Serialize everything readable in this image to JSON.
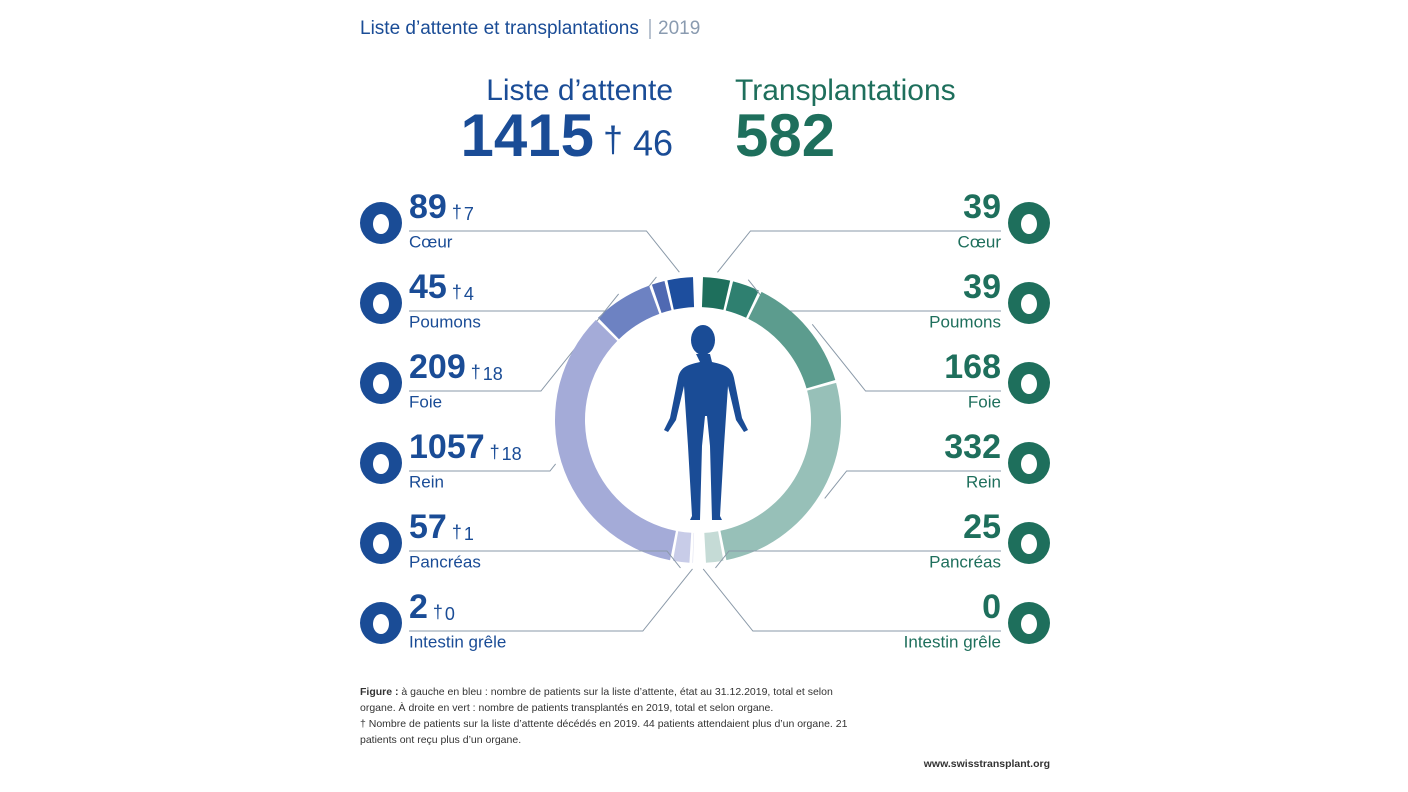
{
  "chart_data": {
    "type": "split-donut",
    "title": "Liste d’attente et transplantations",
    "year": "2019",
    "dagger": "†",
    "waiting": {
      "label": "Liste d’attente",
      "total": 1415,
      "deaths": 46,
      "color": "#1a4c96",
      "organs": [
        {
          "name": "Cœur",
          "value": 89,
          "deaths": 7,
          "color": "#1d4e9e"
        },
        {
          "name": "Poumons",
          "value": 45,
          "deaths": 4,
          "color": "#4f69b2"
        },
        {
          "name": "Foie",
          "value": 209,
          "deaths": 18,
          "color": "#6d82c2"
        },
        {
          "name": "Rein",
          "value": 1057,
          "deaths": 18,
          "color": "#a4abd8"
        },
        {
          "name": "Pancréas",
          "value": 57,
          "deaths": 1,
          "color": "#c8cce8"
        },
        {
          "name": "Intestin grêle",
          "value": 2,
          "deaths": 0,
          "color": "#dfe1f0"
        }
      ]
    },
    "transplants": {
      "label": "Transplantations",
      "total": 582,
      "color": "#1e6f5c",
      "organs": [
        {
          "name": "Cœur",
          "value": 39,
          "color": "#1e6f5c"
        },
        {
          "name": "Poumons",
          "value": 39,
          "color": "#2f8070"
        },
        {
          "name": "Foie",
          "value": 168,
          "color": "#5c9c8e"
        },
        {
          "name": "Rein",
          "value": 332,
          "color": "#97c0b8"
        },
        {
          "name": "Pancréas",
          "value": 25,
          "color": "#c5dbd6"
        },
        {
          "name": "Intestin grêle",
          "value": 0,
          "color": "#e0ece9"
        }
      ]
    },
    "footnote": {
      "label": "Figure :",
      "text": "à gauche en bleu : nombre de patients sur la liste d’attente, état au 31.12.2019, total et selon organe. À droite en vert : nombre de patients transplantés en 2019, total et selon organe.",
      "note": "† Nombre de patients sur la liste d’attente décédés en 2019. 44 patients attendaient plus d’un organe. 21 patients ont reçu plus d’un organe."
    },
    "url": "www.swisstransplant.org"
  }
}
